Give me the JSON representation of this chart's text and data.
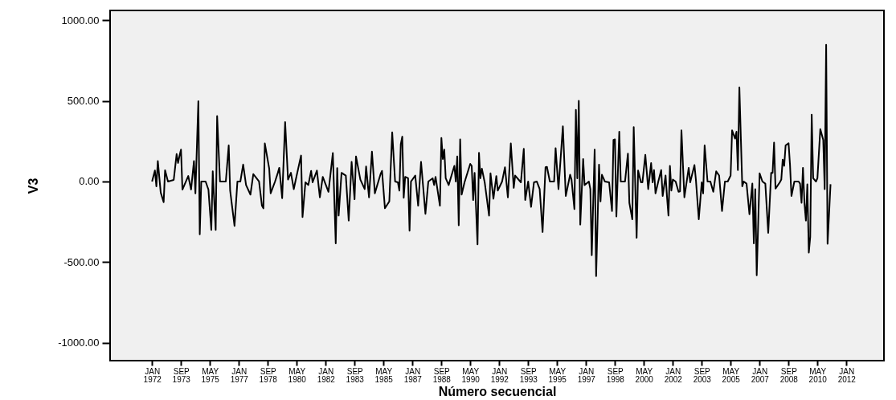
{
  "chart_data": {
    "type": "line",
    "xlabel": "Número secuencial",
    "ylabel": "V3",
    "xlim": [
      "1969-08",
      "2014-03"
    ],
    "ylim": [
      -1110,
      1060
    ],
    "xticks": [
      {
        "value": "1972-01",
        "label": "JAN 1972"
      },
      {
        "value": "1973-09",
        "label": "SEP 1973"
      },
      {
        "value": "1975-05",
        "label": "MAY 1975"
      },
      {
        "value": "1977-01",
        "label": "JAN 1977"
      },
      {
        "value": "1978-09",
        "label": "SEP 1978"
      },
      {
        "value": "1980-05",
        "label": "MAY 1980"
      },
      {
        "value": "1982-01",
        "label": "JAN 1982"
      },
      {
        "value": "1983-09",
        "label": "SEP 1983"
      },
      {
        "value": "1985-05",
        "label": "MAY 1985"
      },
      {
        "value": "1987-01",
        "label": "JAN 1987"
      },
      {
        "value": "1988-09",
        "label": "SEP 1988"
      },
      {
        "value": "1990-05",
        "label": "MAY 1990"
      },
      {
        "value": "1992-01",
        "label": "JAN 1992"
      },
      {
        "value": "1993-09",
        "label": "SEP 1993"
      },
      {
        "value": "1995-05",
        "label": "MAY 1995"
      },
      {
        "value": "1997-01",
        "label": "JAN 1997"
      },
      {
        "value": "1998-09",
        "label": "SEP 1998"
      },
      {
        "value": "2000-05",
        "label": "MAY 2000"
      },
      {
        "value": "2002-01",
        "label": "JAN 2002"
      },
      {
        "value": "2003-09",
        "label": "SEP 2003"
      },
      {
        "value": "2005-05",
        "label": "MAY 2005"
      },
      {
        "value": "2007-01",
        "label": "JAN 2007"
      },
      {
        "value": "2008-09",
        "label": "SEP 2008"
      },
      {
        "value": "2010-05",
        "label": "MAY 2010"
      },
      {
        "value": "2012-01",
        "label": "JAN 2012"
      }
    ],
    "yticks": [
      {
        "value": -1000,
        "label": "-1000.00"
      },
      {
        "value": -500,
        "label": "-500.00"
      },
      {
        "value": 0,
        "label": "0.00"
      },
      {
        "value": 500,
        "label": "500.00"
      },
      {
        "value": 1000,
        "label": "1000.00"
      }
    ],
    "grid": false,
    "marker": "none",
    "line_style": "solid",
    "series": [
      {
        "color": "#000000",
        "x": [
          "1972-01",
          "1972-03",
          "1972-04",
          "1972-05",
          "1972-07",
          "1972-09",
          "1972-10",
          "1972-12",
          "1973-04",
          "1973-06",
          "1973-07",
          "1973-08",
          "1973-09",
          "1973-10",
          "1974-02",
          "1974-04",
          "1974-06",
          "1974-07",
          "1974-09",
          "1974-10",
          "1974-11",
          "1975-02",
          "1975-04",
          "1975-06",
          "1975-07",
          "1975-09",
          "1975-10",
          "1975-12",
          "1976-04",
          "1976-06",
          "1976-07",
          "1976-10",
          "1976-12",
          "1977-02",
          "1977-04",
          "1977-06",
          "1977-09",
          "1977-11",
          "1978-03",
          "1978-05",
          "1978-06",
          "1978-07",
          "1978-10",
          "1978-11",
          "1979-02",
          "1979-04",
          "1979-05",
          "1979-07",
          "1979-09",
          "1979-11",
          "1980-01",
          "1980-03",
          "1980-05",
          "1980-08",
          "1980-09",
          "1980-11",
          "1981-01",
          "1981-03",
          "1981-04",
          "1981-07",
          "1981-09",
          "1981-11",
          "1982-03",
          "1982-06",
          "1982-08",
          "1982-09",
          "1982-10",
          "1982-12",
          "1983-03",
          "1983-05",
          "1983-07",
          "1983-09",
          "1983-10",
          "1984-01",
          "1984-04",
          "1984-05",
          "1984-07",
          "1984-09",
          "1984-11",
          "1985-03",
          "1985-04",
          "1985-06",
          "1985-09",
          "1985-11",
          "1986-01",
          "1986-03",
          "1986-04",
          "1986-05",
          "1986-06",
          "1986-07",
          "1986-08",
          "1986-10",
          "1986-11",
          "1986-12",
          "1987-03",
          "1987-05",
          "1987-07",
          "1987-10",
          "1987-12",
          "1988-03",
          "1988-04",
          "1988-05",
          "1988-08",
          "1988-09",
          "1988-10",
          "1988-11",
          "1988-12",
          "1989-02",
          "1989-06",
          "1989-07",
          "1989-08",
          "1989-09",
          "1989-10",
          "1989-11",
          "1990-01",
          "1990-05",
          "1990-06",
          "1990-07",
          "1990-08",
          "1990-10",
          "1990-11",
          "1990-12",
          "1991-01",
          "1991-03",
          "1991-06",
          "1991-07",
          "1991-09",
          "1991-11",
          "1991-12",
          "1992-03",
          "1992-05",
          "1992-07",
          "1992-09",
          "1992-11",
          "1992-12",
          "1993-04",
          "1993-06",
          "1993-07",
          "1993-09",
          "1993-11",
          "1994-01",
          "1994-03",
          "1994-05",
          "1994-07",
          "1994-09",
          "1994-10",
          "1994-12",
          "1995-03",
          "1995-04",
          "1995-06",
          "1995-09",
          "1995-11",
          "1996-02",
          "1996-03",
          "1996-05",
          "1996-06",
          "1996-07",
          "1996-08",
          "1996-09",
          "1996-11",
          "1996-12",
          "1997-03",
          "1997-04",
          "1997-05",
          "1997-07",
          "1997-08",
          "1997-10",
          "1997-11",
          "1997-12",
          "1998-02",
          "1998-05",
          "1998-07",
          "1998-08",
          "1998-09",
          "1998-10",
          "1998-12",
          "1999-01",
          "1999-04",
          "1999-06",
          "1999-07",
          "1999-09",
          "1999-10",
          "1999-12",
          "2000-01",
          "2000-03",
          "2000-04",
          "2000-06",
          "2000-08",
          "2000-10",
          "2000-11",
          "2000-12",
          "2001-01",
          "2001-03",
          "2001-05",
          "2001-06",
          "2001-08",
          "2001-09",
          "2001-10",
          "2001-11",
          "2001-12",
          "2002-01",
          "2002-03",
          "2002-05",
          "2002-06",
          "2002-07",
          "2002-09",
          "2002-12",
          "2003-01",
          "2003-04",
          "2003-05",
          "2003-07",
          "2003-09",
          "2003-10",
          "2003-11",
          "2004-01",
          "2004-03",
          "2004-05",
          "2004-07",
          "2004-09",
          "2004-11",
          "2005-01",
          "2005-03",
          "2005-05",
          "2005-06",
          "2005-08",
          "2005-09",
          "2005-10",
          "2005-11",
          "2006-01",
          "2006-02",
          "2006-04",
          "2006-06",
          "2006-08",
          "2006-09",
          "2006-10",
          "2006-11",
          "2007-01",
          "2007-03",
          "2007-05",
          "2007-07",
          "2007-09",
          "2007-10",
          "2007-11",
          "2007-12",
          "2008-03",
          "2008-04",
          "2008-05",
          "2008-06",
          "2008-07",
          "2008-09",
          "2008-10",
          "2008-11",
          "2009-01",
          "2009-04",
          "2009-05",
          "2009-06",
          "2009-07",
          "2009-08",
          "2009-09",
          "2009-10",
          "2009-11",
          "2009-12",
          "2010-01",
          "2010-02",
          "2010-04",
          "2010-05",
          "2010-07",
          "2010-09",
          "2010-10",
          "2010-11",
          "2010-12",
          "2011-02"
        ],
        "values": [
          0,
          68,
          -30,
          127,
          -68,
          -128,
          70,
          0,
          10,
          170,
          115,
          160,
          198,
          -50,
          34,
          -50,
          127,
          -73,
          498,
          -327,
          0,
          0,
          -50,
          -300,
          63,
          -300,
          406,
          0,
          0,
          224,
          -56,
          -275,
          0,
          0,
          105,
          -22,
          -81,
          46,
          0,
          -150,
          -166,
          236,
          80,
          -73,
          0,
          54,
          85,
          -103,
          368,
          12,
          54,
          -47,
          37,
          161,
          -220,
          -5,
          -22,
          66,
          -5,
          68,
          -98,
          29,
          -64,
          176,
          -383,
          83,
          -211,
          54,
          37,
          -242,
          122,
          -110,
          156,
          12,
          -47,
          93,
          -98,
          185,
          -73,
          46,
          66,
          -166,
          -123,
          305,
          0,
          -5,
          -56,
          232,
          278,
          -101,
          29,
          20,
          -305,
          0,
          37,
          -150,
          122,
          -200,
          0,
          20,
          -22,
          29,
          -150,
          270,
          139,
          198,
          20,
          -22,
          97,
          0,
          156,
          -271,
          261,
          -81,
          -5,
          109,
          97,
          -115,
          54,
          -389,
          178,
          20,
          80,
          -5,
          -211,
          51,
          -107,
          34,
          -56,
          0,
          88,
          -98,
          236,
          -39,
          37,
          -5,
          203,
          -115,
          0,
          -157,
          -5,
          0,
          -47,
          -313,
          88,
          91,
          0,
          0,
          207,
          -47,
          342,
          -90,
          42,
          12,
          -171,
          444,
          20,
          500,
          -267,
          139,
          -22,
          0,
          -47,
          -457,
          198,
          -586,
          105,
          -123,
          42,
          0,
          -5,
          -183,
          258,
          261,
          -216,
          308,
          0,
          0,
          173,
          -132,
          -234,
          337,
          -349,
          68,
          -5,
          -5,
          165,
          -47,
          114,
          -5,
          71,
          -73,
          0,
          71,
          -90,
          37,
          -98,
          -211,
          97,
          -56,
          12,
          0,
          -64,
          -61,
          317,
          -98,
          85,
          -5,
          102,
          12,
          -234,
          -5,
          -73,
          224,
          0,
          0,
          -64,
          63,
          37,
          -183,
          0,
          0,
          37,
          317,
          266,
          308,
          71,
          583,
          -30,
          0,
          -13,
          -203,
          -13,
          -383,
          -47,
          -581,
          51,
          0,
          -13,
          -318,
          54,
          54,
          241,
          -44,
          -5,
          12,
          136,
          97,
          224,
          237,
          105,
          -90,
          0,
          0,
          -13,
          -132,
          85,
          -132,
          -242,
          -18,
          -440,
          -343,
          414,
          20,
          0,
          20,
          325,
          258,
          -47,
          847,
          -386,
          -17
        ]
      }
    ]
  }
}
